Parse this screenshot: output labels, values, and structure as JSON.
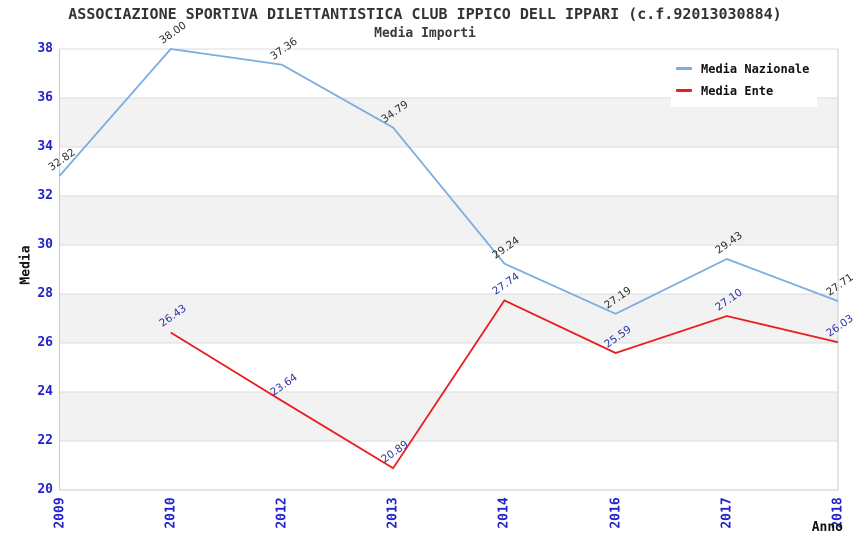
{
  "header": {
    "title": "ASSOCIAZIONE SPORTIVA DILETTANTISTICA CLUB IPPICO DELL IPPARI (c.f.92013030884)",
    "subtitle": "Media Importi"
  },
  "axes": {
    "y_title": "Media",
    "x_title": "Anno",
    "y_ticks": [
      38,
      36,
      34,
      32,
      30,
      28,
      26,
      24,
      22,
      20
    ],
    "x_ticks": [
      "2009",
      "2010",
      "2012",
      "2013",
      "2014",
      "2016",
      "2017",
      "2018"
    ]
  },
  "legend": {
    "items": [
      {
        "label": "Media Nazionale",
        "color": "#7CADE2"
      },
      {
        "label": "Media Ente",
        "color": "#E81E1E"
      }
    ]
  },
  "chart_data": {
    "type": "line",
    "title": "ASSOCIAZIONE SPORTIVA DILETTANTISTICA CLUB IPPICO DELL IPPARI (c.f.92013030884)",
    "subtitle": "Media Importi",
    "xlabel": "Anno",
    "ylabel": "Media",
    "categories": [
      "2009",
      "2010",
      "2012",
      "2013",
      "2014",
      "2016",
      "2017",
      "2018"
    ],
    "series": [
      {
        "name": "Media Nazionale",
        "color": "#7CADE2",
        "label_color": "#2E2E2E",
        "values": [
          32.82,
          38.0,
          37.36,
          34.79,
          29.24,
          27.19,
          29.43,
          27.71
        ]
      },
      {
        "name": "Media Ente",
        "color": "#E81E1E",
        "label_color": "#2B33A6",
        "values": [
          null,
          26.43,
          23.64,
          20.89,
          27.74,
          25.59,
          27.1,
          26.03
        ]
      }
    ],
    "ylim": [
      20,
      38
    ],
    "ytick_step": 2,
    "grid": "horizontal",
    "band_fill": "alternating-gray",
    "legend_position": "top-right",
    "value_label_decimals": 2
  },
  "colors": {
    "background": "#FFFFFF",
    "title": "#333333",
    "subtitle": "#3A3A3A",
    "tick_label": "#2222CC",
    "axis_title": "#111111",
    "legend_text": "#111111",
    "band_gray": "#F2F2F2",
    "gridline": "#DCDCDC",
    "axis_line": "#C9C9C9"
  }
}
